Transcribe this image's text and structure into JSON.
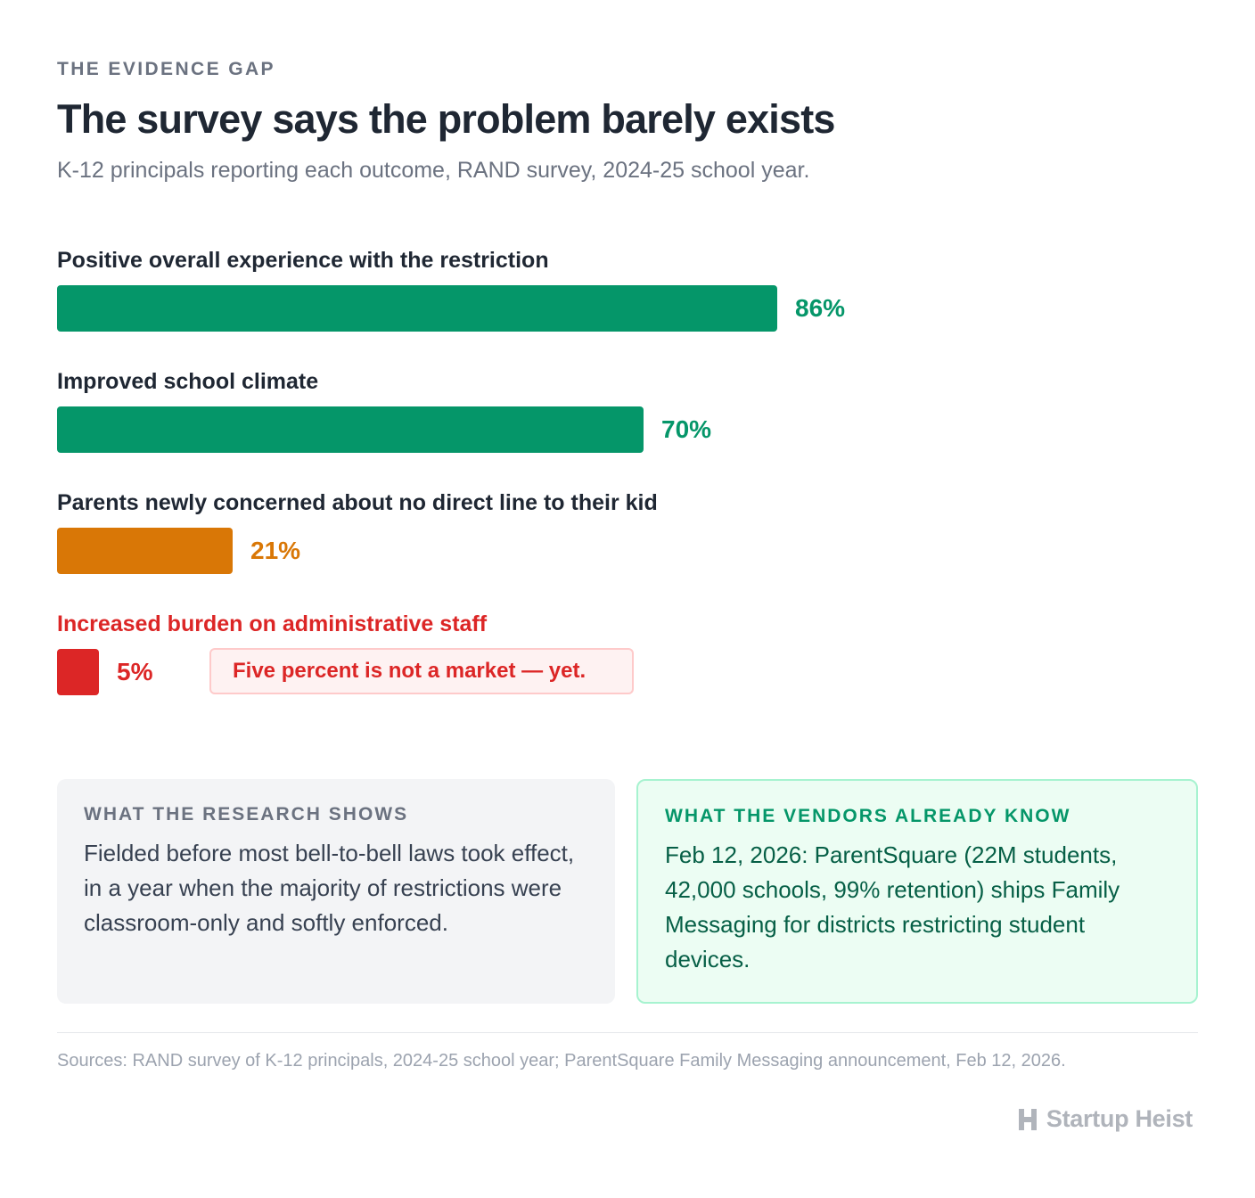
{
  "header": {
    "eyebrow": "THE EVIDENCE GAP",
    "title": "The survey says the problem barely exists",
    "subtitle": "K-12 principals reporting each outcome, RAND survey, 2024-25 school year."
  },
  "chart_data": {
    "type": "bar",
    "orientation": "horizontal",
    "categories": [
      "Positive overall experience with the restriction",
      "Improved school climate",
      "Parents newly concerned about no direct line to their kid",
      "Increased burden on administrative staff"
    ],
    "values": [
      86,
      70,
      21,
      5
    ],
    "value_labels": [
      "86%",
      "70%",
      "21%",
      "5%"
    ],
    "unit": "%",
    "xlim": [
      0,
      100
    ],
    "colors": [
      "#059669",
      "#059669",
      "#d97706",
      "#dc2626"
    ],
    "label_colors": [
      "#1f2733",
      "#1f2733",
      "#1f2733",
      "#dc2626"
    ],
    "annotation": {
      "category_index": 3,
      "text": "Five percent is not a market — yet."
    },
    "grid": false,
    "legend": "none"
  },
  "panels": {
    "left": {
      "heading": "WHAT THE RESEARCH SHOWS",
      "body": "Fielded before most bell-to-bell laws took effect, in a year when the majority of restrictions were classroom-only and softly enforced."
    },
    "right": {
      "heading": "WHAT THE VENDORS ALREADY KNOW",
      "body": "Feb 12, 2026: ParentSquare (22M students, 42,000 schools, 99% retention) ships Family Messaging for districts restricting student devices."
    }
  },
  "footer": {
    "sources": "Sources: RAND survey of K-12 principals, 2024-25 school year; ParentSquare Family Messaging announcement, Feb 12, 2026.",
    "brand": "Startup Heist",
    "brand_icon": "h-logo-icon"
  }
}
